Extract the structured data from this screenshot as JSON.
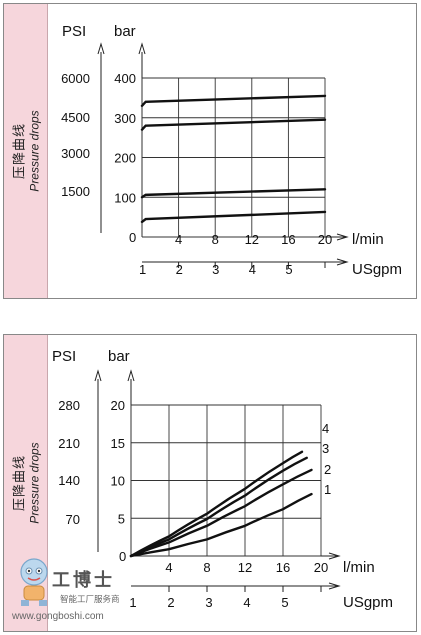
{
  "chart_data": [
    {
      "type": "line",
      "side_label_cn": "压降曲线",
      "side_label_en": "Pressure drops",
      "left_unit_1": "PSI",
      "left_unit_2": "bar",
      "psi_ticks": [
        "6000",
        "4500",
        "3000",
        "1500"
      ],
      "bar_ticks": [
        "400",
        "300",
        "200",
        "100",
        "0"
      ],
      "x_ticks": [
        "4",
        "8",
        "12",
        "16",
        "20"
      ],
      "x_unit": "l/min",
      "x2_ticks": [
        "1",
        "2",
        "3",
        "4",
        "5"
      ],
      "x2_unit": "USgpm",
      "xlim": [
        0,
        20
      ],
      "ylim": [
        0,
        400
      ],
      "series": [
        {
          "x": [
            0,
            0.4,
            20
          ],
          "y": [
            330,
            340,
            355
          ]
        },
        {
          "x": [
            0,
            0.4,
            20
          ],
          "y": [
            270,
            280,
            295
          ]
        },
        {
          "x": [
            0,
            0.4,
            20
          ],
          "y": [
            100,
            106,
            120
          ]
        },
        {
          "x": [
            0,
            0.4,
            20
          ],
          "y": [
            38,
            45,
            63
          ]
        }
      ]
    },
    {
      "type": "line",
      "side_label_cn": "压降曲线",
      "side_label_en": "Pressure drops",
      "left_unit_1": "PSI",
      "left_unit_2": "bar",
      "psi_ticks": [
        "280",
        "210",
        "140",
        "70"
      ],
      "bar_ticks": [
        "20",
        "15",
        "10",
        "5",
        "0"
      ],
      "x_ticks": [
        "4",
        "8",
        "12",
        "16",
        "20"
      ],
      "x_unit": "l/min",
      "x2_ticks": [
        "1",
        "2",
        "3",
        "4",
        "5"
      ],
      "x2_unit": "USgpm",
      "xlim": [
        0,
        20
      ],
      "ylim": [
        0,
        20
      ],
      "series": [
        {
          "name": "1",
          "x": [
            0,
            4,
            8,
            12,
            16,
            19
          ],
          "y": [
            0,
            0.9,
            2.2,
            4.0,
            6.2,
            8.2
          ]
        },
        {
          "name": "2",
          "x": [
            0,
            4,
            8,
            12,
            16,
            19
          ],
          "y": [
            0,
            1.8,
            4.0,
            6.6,
            9.5,
            11.4
          ]
        },
        {
          "name": "3",
          "x": [
            0,
            4,
            8,
            12,
            16,
            18.5
          ],
          "y": [
            0,
            2.2,
            4.9,
            8.0,
            11.3,
            13.0
          ]
        },
        {
          "name": "4",
          "x": [
            0,
            4,
            8,
            12,
            16,
            18
          ],
          "y": [
            0,
            2.6,
            5.6,
            8.9,
            12.3,
            13.8
          ]
        }
      ]
    }
  ],
  "watermark": {
    "title": "工博士",
    "subtitle": "智能工厂服务商",
    "url": "www.gongboshi.com"
  }
}
